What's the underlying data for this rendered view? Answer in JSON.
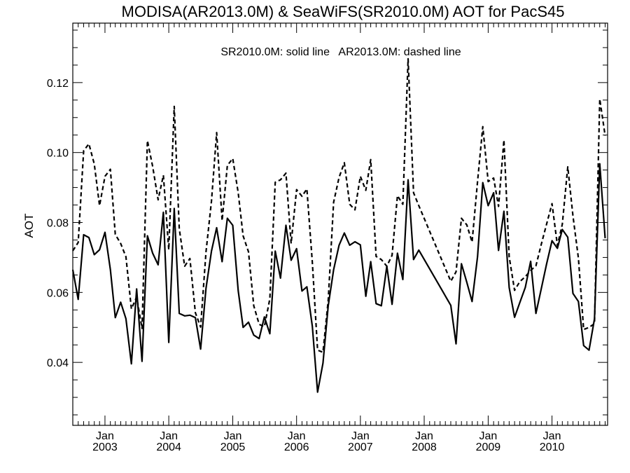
{
  "chart_data": {
    "type": "line",
    "title": "MODISA(AR2013.0M) & SeaWiFS(SR2010.0M)  AOT for PacS45",
    "annotation": "SR2010.0M: solid line   AR2013.0M: dashed line",
    "xlabel": "",
    "ylabel": "AOT",
    "xlim": [
      "2002-07-01",
      "2010-11-15"
    ],
    "ylim": [
      0.022,
      0.137
    ],
    "yticks": [
      0.04,
      0.06,
      0.08,
      0.1,
      0.12
    ],
    "ytick_labels": [
      "0.04",
      "0.06",
      "0.08",
      "0.10",
      "0.12"
    ],
    "xticks": [
      {
        "date": "2003-01-01",
        "month": "Jan",
        "year": "2003"
      },
      {
        "date": "2004-01-01",
        "month": "Jan",
        "year": "2004"
      },
      {
        "date": "2005-01-01",
        "month": "Jan",
        "year": "2005"
      },
      {
        "date": "2006-01-01",
        "month": "Jan",
        "year": "2006"
      },
      {
        "date": "2007-01-01",
        "month": "Jan",
        "year": "2007"
      },
      {
        "date": "2008-01-01",
        "month": "Jan",
        "year": "2008"
      },
      {
        "date": "2009-01-01",
        "month": "Jan",
        "year": "2009"
      },
      {
        "date": "2010-01-01",
        "month": "Jan",
        "year": "2010"
      }
    ],
    "grid": false,
    "series": [
      {
        "name": "SR2010.0M",
        "style": "solid",
        "color": "#000000",
        "points": [
          [
            "2002-07-01",
            0.0665
          ],
          [
            "2002-08-01",
            0.058
          ],
          [
            "2002-09-01",
            0.0765
          ],
          [
            "2002-10-01",
            0.0757
          ],
          [
            "2002-11-01",
            0.0708
          ],
          [
            "2002-12-01",
            0.0722
          ],
          [
            "2003-01-01",
            0.0772
          ],
          [
            "2003-02-01",
            0.0665
          ],
          [
            "2003-03-01",
            0.0528
          ],
          [
            "2003-04-01",
            0.0572
          ],
          [
            "2003-05-01",
            0.0525
          ],
          [
            "2003-06-01",
            0.0396
          ],
          [
            "2003-07-01",
            0.061
          ],
          [
            "2003-08-01",
            0.0403
          ],
          [
            "2003-09-01",
            0.0762
          ],
          [
            "2003-10-01",
            0.0712
          ],
          [
            "2003-11-01",
            0.0679
          ],
          [
            "2003-12-01",
            0.0829
          ],
          [
            "2004-01-01",
            0.0457
          ],
          [
            "2004-02-01",
            0.084
          ],
          [
            "2004-03-01",
            0.054
          ],
          [
            "2004-04-01",
            0.0533
          ],
          [
            "2004-05-01",
            0.0535
          ],
          [
            "2004-06-01",
            0.0528
          ],
          [
            "2004-07-01",
            0.0438
          ],
          [
            "2004-08-01",
            0.0612
          ],
          [
            "2004-09-01",
            0.0718
          ],
          [
            "2004-10-01",
            0.0785
          ],
          [
            "2004-11-01",
            0.0688
          ],
          [
            "2004-12-01",
            0.0812
          ],
          [
            "2005-01-01",
            0.0792
          ],
          [
            "2005-02-01",
            0.0605
          ],
          [
            "2005-03-01",
            0.05
          ],
          [
            "2005-04-01",
            0.0515
          ],
          [
            "2005-05-01",
            0.0478
          ],
          [
            "2005-06-01",
            0.0468
          ],
          [
            "2005-07-01",
            0.053
          ],
          [
            "2005-08-01",
            0.0482
          ],
          [
            "2005-09-01",
            0.0718
          ],
          [
            "2005-10-01",
            0.0641
          ],
          [
            "2005-11-01",
            0.0792
          ],
          [
            "2005-12-01",
            0.0692
          ],
          [
            "2006-01-01",
            0.0725
          ],
          [
            "2006-02-01",
            0.0604
          ],
          [
            "2006-03-01",
            0.0616
          ],
          [
            "2006-04-01",
            0.0503
          ],
          [
            "2006-05-01",
            0.0315
          ],
          [
            "2006-06-01",
            0.0398
          ],
          [
            "2006-07-01",
            0.0562
          ],
          [
            "2006-08-01",
            0.0665
          ],
          [
            "2006-09-01",
            0.0735
          ],
          [
            "2006-10-01",
            0.077
          ],
          [
            "2006-11-01",
            0.0735
          ],
          [
            "2006-12-01",
            0.0745
          ],
          [
            "2007-01-01",
            0.0736
          ],
          [
            "2007-02-01",
            0.0589
          ],
          [
            "2007-03-01",
            0.0688
          ],
          [
            "2007-04-01",
            0.0568
          ],
          [
            "2007-05-01",
            0.0562
          ],
          [
            "2007-06-01",
            0.0675
          ],
          [
            "2007-07-01",
            0.0566
          ],
          [
            "2007-08-01",
            0.0712
          ],
          [
            "2007-09-01",
            0.0637
          ],
          [
            "2007-10-01",
            0.0922
          ],
          [
            "2007-11-01",
            0.0694
          ],
          [
            "2007-12-01",
            0.0721
          ],
          [
            "2008-06-01",
            0.0563
          ],
          [
            "2008-07-01",
            0.0453
          ],
          [
            "2008-08-01",
            0.0682
          ],
          [
            "2008-09-01",
            0.0629
          ],
          [
            "2008-10-01",
            0.0574
          ],
          [
            "2008-11-01",
            0.0702
          ],
          [
            "2008-12-01",
            0.0914
          ],
          [
            "2009-01-01",
            0.0848
          ],
          [
            "2009-02-01",
            0.0885
          ],
          [
            "2009-03-01",
            0.072
          ],
          [
            "2009-04-01",
            0.0832
          ],
          [
            "2009-05-01",
            0.0614
          ],
          [
            "2009-06-01",
            0.0529
          ],
          [
            "2009-07-01",
            0.0571
          ],
          [
            "2009-08-01",
            0.0614
          ],
          [
            "2009-09-01",
            0.0689
          ],
          [
            "2009-10-01",
            0.054
          ],
          [
            "2009-11-01",
            0.0611
          ],
          [
            "2009-12-01",
            0.0681
          ],
          [
            "2010-01-01",
            0.0748
          ],
          [
            "2010-02-01",
            0.0726
          ],
          [
            "2010-03-01",
            0.078
          ],
          [
            "2010-04-01",
            0.0758
          ],
          [
            "2010-05-01",
            0.0597
          ],
          [
            "2010-06-01",
            0.0574
          ],
          [
            "2010-07-01",
            0.0448
          ],
          [
            "2010-08-01",
            0.0435
          ],
          [
            "2010-09-01",
            0.0525
          ],
          [
            "2010-10-01",
            0.0968
          ],
          [
            "2010-11-01",
            0.0755
          ]
        ]
      },
      {
        "name": "AR2013.0M",
        "style": "dashed",
        "color": "#000000",
        "points": [
          [
            "2002-07-01",
            0.0719
          ],
          [
            "2002-08-01",
            0.0743
          ],
          [
            "2002-09-01",
            0.1005
          ],
          [
            "2002-10-01",
            0.1025
          ],
          [
            "2002-11-01",
            0.0967
          ],
          [
            "2002-12-01",
            0.0848
          ],
          [
            "2003-01-01",
            0.0932
          ],
          [
            "2003-02-01",
            0.0952
          ],
          [
            "2003-03-01",
            0.0766
          ],
          [
            "2003-04-01",
            0.074
          ],
          [
            "2003-05-01",
            0.0702
          ],
          [
            "2003-06-01",
            0.0553
          ],
          [
            "2003-07-01",
            0.0587
          ],
          [
            "2003-08-01",
            0.0497
          ],
          [
            "2003-09-01",
            0.1034
          ],
          [
            "2003-10-01",
            0.096
          ],
          [
            "2003-11-01",
            0.0865
          ],
          [
            "2003-12-01",
            0.0935
          ],
          [
            "2004-01-01",
            0.0722
          ],
          [
            "2004-02-01",
            0.1132
          ],
          [
            "2004-03-01",
            0.0782
          ],
          [
            "2004-04-01",
            0.0675
          ],
          [
            "2004-05-01",
            0.0697
          ],
          [
            "2004-06-01",
            0.0542
          ],
          [
            "2004-07-01",
            0.0501
          ],
          [
            "2004-08-01",
            0.0716
          ],
          [
            "2004-09-01",
            0.0861
          ],
          [
            "2004-10-01",
            0.1057
          ],
          [
            "2004-11-01",
            0.0805
          ],
          [
            "2004-12-01",
            0.0963
          ],
          [
            "2005-01-01",
            0.0983
          ],
          [
            "2005-02-01",
            0.0885
          ],
          [
            "2005-03-01",
            0.0762
          ],
          [
            "2005-04-01",
            0.0716
          ],
          [
            "2005-05-01",
            0.0562
          ],
          [
            "2005-06-01",
            0.0509
          ],
          [
            "2005-07-01",
            0.0502
          ],
          [
            "2005-08-01",
            0.0582
          ],
          [
            "2005-09-01",
            0.0915
          ],
          [
            "2005-10-01",
            0.0922
          ],
          [
            "2005-11-01",
            0.0941
          ],
          [
            "2005-12-01",
            0.074
          ],
          [
            "2006-01-01",
            0.0894
          ],
          [
            "2006-02-01",
            0.0875
          ],
          [
            "2006-03-01",
            0.0896
          ],
          [
            "2006-04-01",
            0.0686
          ],
          [
            "2006-05-01",
            0.0435
          ],
          [
            "2006-06-01",
            0.0429
          ],
          [
            "2006-07-01",
            0.0578
          ],
          [
            "2006-08-01",
            0.0858
          ],
          [
            "2006-09-01",
            0.0929
          ],
          [
            "2006-10-01",
            0.0971
          ],
          [
            "2006-11-01",
            0.0852
          ],
          [
            "2006-12-01",
            0.0836
          ],
          [
            "2007-01-01",
            0.0932
          ],
          [
            "2007-02-01",
            0.0892
          ],
          [
            "2007-03-01",
            0.098
          ],
          [
            "2007-04-01",
            0.0703
          ],
          [
            "2007-05-01",
            0.0694
          ],
          [
            "2007-06-01",
            0.0675
          ],
          [
            "2007-07-01",
            0.0706
          ],
          [
            "2007-08-01",
            0.0877
          ],
          [
            "2007-09-01",
            0.0852
          ],
          [
            "2007-10-01",
            0.1268
          ],
          [
            "2007-11-01",
            0.0885
          ],
          [
            "2007-12-01",
            0.0848
          ],
          [
            "2008-06-01",
            0.0632
          ],
          [
            "2008-07-01",
            0.0659
          ],
          [
            "2008-08-01",
            0.0812
          ],
          [
            "2008-09-01",
            0.0793
          ],
          [
            "2008-10-01",
            0.0744
          ],
          [
            "2008-11-01",
            0.0917
          ],
          [
            "2008-12-01",
            0.1074
          ],
          [
            "2009-01-01",
            0.0917
          ],
          [
            "2009-02-01",
            0.0927
          ],
          [
            "2009-03-01",
            0.0846
          ],
          [
            "2009-04-01",
            0.1036
          ],
          [
            "2009-05-01",
            0.0702
          ],
          [
            "2009-06-01",
            0.0606
          ],
          [
            "2009-07-01",
            0.0631
          ],
          [
            "2009-08-01",
            0.0645
          ],
          [
            "2009-09-01",
            0.0663
          ],
          [
            "2009-10-01",
            0.0676
          ],
          [
            "2009-11-01",
            0.0738
          ],
          [
            "2009-12-01",
            0.0795
          ],
          [
            "2010-01-01",
            0.0854
          ],
          [
            "2010-02-01",
            0.0734
          ],
          [
            "2010-03-01",
            0.0795
          ],
          [
            "2010-04-01",
            0.0959
          ],
          [
            "2010-05-01",
            0.0819
          ],
          [
            "2010-06-01",
            0.0698
          ],
          [
            "2010-07-01",
            0.0494
          ],
          [
            "2010-08-01",
            0.05
          ],
          [
            "2010-09-01",
            0.0511
          ],
          [
            "2010-10-01",
            0.1153
          ],
          [
            "2010-11-01",
            0.1048
          ]
        ]
      }
    ]
  }
}
